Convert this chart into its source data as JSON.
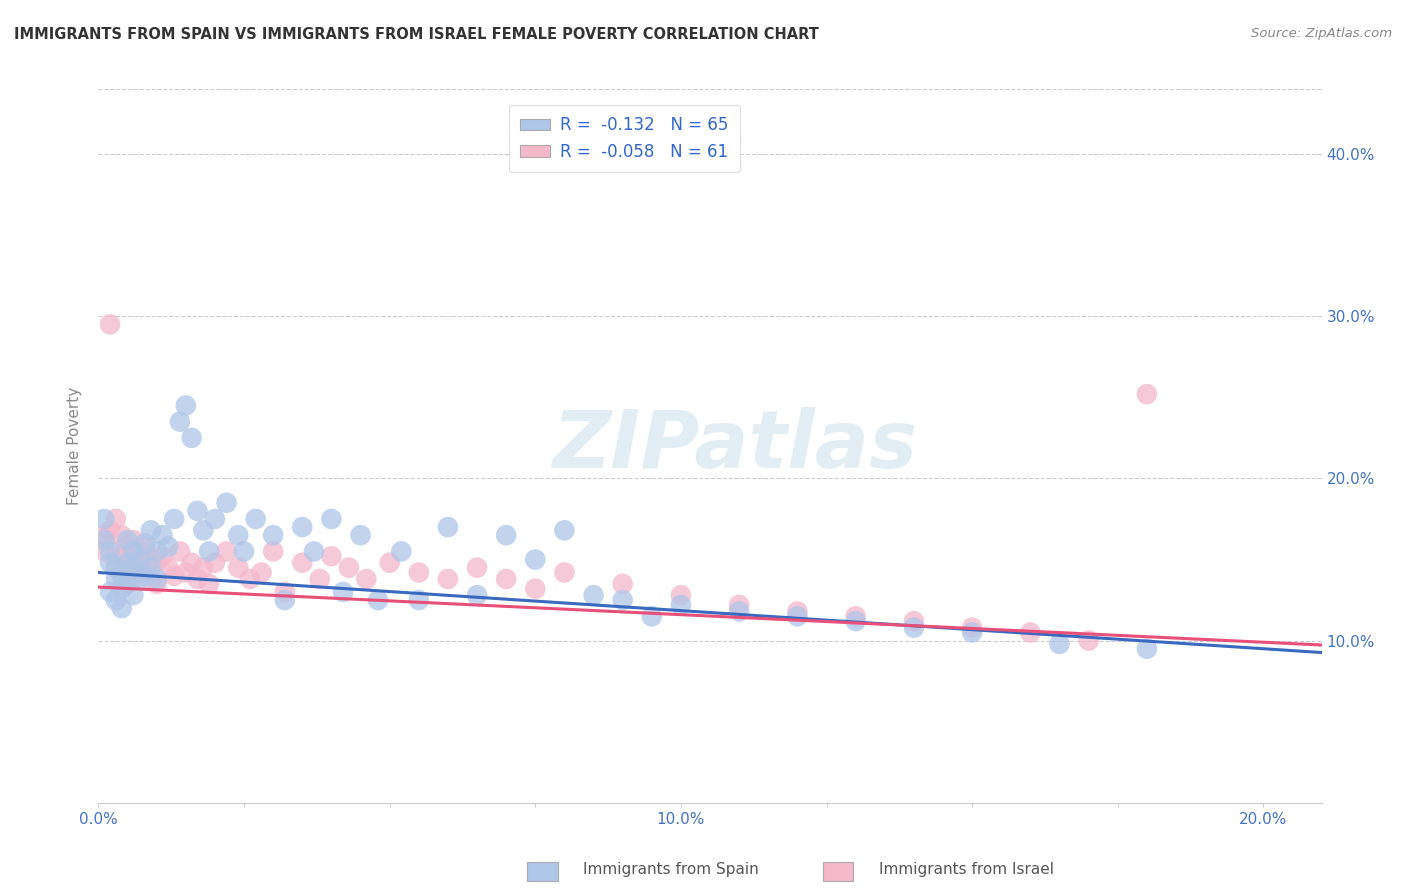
{
  "title": "IMMIGRANTS FROM SPAIN VS IMMIGRANTS FROM ISRAEL FEMALE POVERTY CORRELATION CHART",
  "source": "Source: ZipAtlas.com",
  "ylabel": "Female Poverty",
  "xlim": [
    0.0,
    0.21
  ],
  "ylim": [
    0.0,
    0.44
  ],
  "xticks": [
    0.0,
    0.025,
    0.05,
    0.075,
    0.1,
    0.125,
    0.15,
    0.175,
    0.2
  ],
  "xtick_labels": [
    "0.0%",
    "",
    "",
    "",
    "10.0%",
    "",
    "",
    "",
    "20.0%"
  ],
  "yticks": [
    0.0,
    0.1,
    0.2,
    0.3,
    0.4
  ],
  "ytick_labels": [
    "",
    "10.0%",
    "20.0%",
    "30.0%",
    "40.0%"
  ],
  "legend_r_spain": "-0.132",
  "legend_n_spain": "65",
  "legend_r_israel": "-0.058",
  "legend_n_israel": "61",
  "color_spain": "#aec6e8",
  "color_israel": "#f4b8cb",
  "trendline_spain_color": "#3a6abf",
  "trendline_israel_color": "#e8507a",
  "watermark": "ZIPatlas",
  "spain_x": [
    0.001,
    0.001,
    0.002,
    0.002,
    0.002,
    0.003,
    0.003,
    0.003,
    0.004,
    0.004,
    0.004,
    0.005,
    0.005,
    0.005,
    0.006,
    0.006,
    0.006,
    0.007,
    0.007,
    0.008,
    0.008,
    0.009,
    0.009,
    0.01,
    0.01,
    0.011,
    0.012,
    0.013,
    0.014,
    0.015,
    0.016,
    0.017,
    0.018,
    0.019,
    0.02,
    0.022,
    0.024,
    0.025,
    0.027,
    0.03,
    0.032,
    0.035,
    0.037,
    0.04,
    0.042,
    0.045,
    0.048,
    0.052,
    0.055,
    0.06,
    0.065,
    0.07,
    0.075,
    0.08,
    0.085,
    0.09,
    0.095,
    0.1,
    0.11,
    0.12,
    0.13,
    0.14,
    0.15,
    0.165,
    0.18
  ],
  "spain_y": [
    0.175,
    0.162,
    0.155,
    0.148,
    0.13,
    0.145,
    0.138,
    0.125,
    0.14,
    0.132,
    0.12,
    0.162,
    0.148,
    0.135,
    0.155,
    0.145,
    0.128,
    0.15,
    0.138,
    0.16,
    0.14,
    0.168,
    0.145,
    0.155,
    0.138,
    0.165,
    0.158,
    0.175,
    0.235,
    0.245,
    0.225,
    0.18,
    0.168,
    0.155,
    0.175,
    0.185,
    0.165,
    0.155,
    0.175,
    0.165,
    0.125,
    0.17,
    0.155,
    0.175,
    0.13,
    0.165,
    0.125,
    0.155,
    0.125,
    0.17,
    0.128,
    0.165,
    0.15,
    0.168,
    0.128,
    0.125,
    0.115,
    0.122,
    0.118,
    0.115,
    0.112,
    0.108,
    0.105,
    0.098,
    0.095
  ],
  "israel_x": [
    0.001,
    0.001,
    0.002,
    0.002,
    0.003,
    0.003,
    0.003,
    0.004,
    0.004,
    0.004,
    0.005,
    0.005,
    0.006,
    0.006,
    0.006,
    0.007,
    0.007,
    0.008,
    0.008,
    0.009,
    0.009,
    0.01,
    0.01,
    0.011,
    0.012,
    0.013,
    0.014,
    0.015,
    0.016,
    0.017,
    0.018,
    0.019,
    0.02,
    0.022,
    0.024,
    0.026,
    0.028,
    0.03,
    0.032,
    0.035,
    0.038,
    0.04,
    0.043,
    0.046,
    0.05,
    0.055,
    0.06,
    0.065,
    0.07,
    0.075,
    0.08,
    0.09,
    0.1,
    0.11,
    0.12,
    0.13,
    0.14,
    0.15,
    0.16,
    0.17,
    0.18
  ],
  "israel_y": [
    0.165,
    0.155,
    0.295,
    0.168,
    0.175,
    0.155,
    0.148,
    0.165,
    0.152,
    0.14,
    0.158,
    0.145,
    0.162,
    0.148,
    0.138,
    0.155,
    0.142,
    0.158,
    0.145,
    0.15,
    0.138,
    0.148,
    0.135,
    0.152,
    0.145,
    0.14,
    0.155,
    0.142,
    0.148,
    0.138,
    0.145,
    0.135,
    0.148,
    0.155,
    0.145,
    0.138,
    0.142,
    0.155,
    0.13,
    0.148,
    0.138,
    0.152,
    0.145,
    0.138,
    0.148,
    0.142,
    0.138,
    0.145,
    0.138,
    0.132,
    0.142,
    0.135,
    0.128,
    0.122,
    0.118,
    0.115,
    0.112,
    0.108,
    0.105,
    0.1,
    0.252
  ]
}
